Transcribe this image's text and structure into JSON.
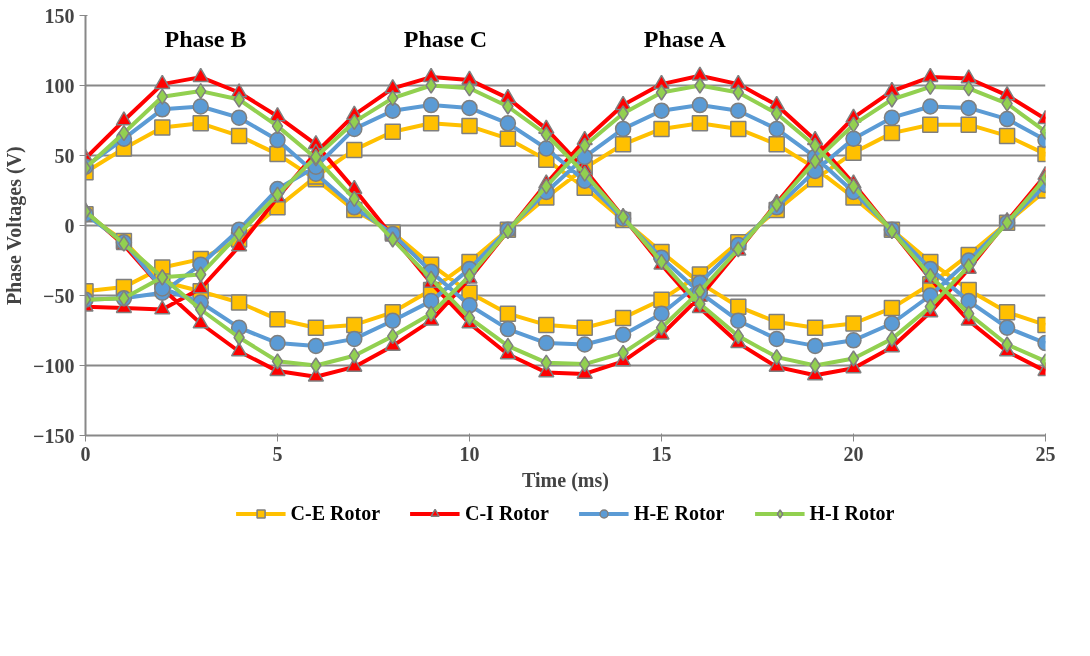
{
  "chart_data": {
    "type": "line",
    "xlabel": "Time (ms)",
    "ylabel": "Phase Voltages (V)",
    "xlim": [
      0,
      25
    ],
    "xticks": [
      0,
      5,
      10,
      15,
      20,
      25
    ],
    "ylim": [
      -150,
      150
    ],
    "yticks": [
      -150,
      -100,
      -50,
      0,
      50,
      100,
      150
    ],
    "grid": "y",
    "legend": "bottom",
    "line_style": "solid",
    "annotations": [
      "Phase B",
      "Phase C",
      "Phase A"
    ],
    "x": [
      0,
      1,
      2,
      3,
      4,
      5,
      6,
      7,
      8,
      9,
      10,
      11,
      12,
      13,
      14,
      15,
      16,
      17,
      18,
      19,
      20,
      21,
      22,
      23,
      24,
      25,
      null,
      0,
      1,
      2,
      3,
      4,
      5,
      6,
      7,
      8,
      9,
      10,
      11,
      12,
      13,
      14,
      15,
      16,
      17,
      18,
      19,
      20,
      21,
      22,
      23,
      24,
      25,
      null,
      0,
      1,
      2,
      3,
      4,
      5,
      6,
      7,
      8,
      9,
      10,
      11,
      12,
      13,
      14,
      15,
      16,
      17,
      18,
      19,
      20,
      21,
      22,
      23,
      24,
      25
    ],
    "series": [
      {
        "name": "C-E Rotor",
        "color": "#ffc000",
        "marker": "square",
        "values": [
          38,
          55,
          70,
          73,
          64,
          51,
          33,
          11,
          -5,
          -28,
          -48,
          -63,
          -71,
          -73,
          -66,
          -53,
          -35,
          -12,
          11,
          33,
          52,
          66,
          72,
          72,
          64,
          51,
          null,
          -47,
          -44,
          -30,
          -24,
          -10,
          13,
          35,
          54,
          67,
          73,
          71,
          62,
          47,
          27,
          4,
          -19,
          -41,
          -58,
          -69,
          -73,
          -70,
          -59,
          -42,
          -21,
          2,
          25,
          null,
          8,
          -11,
          -40,
          -47,
          -55,
          -67,
          -73,
          -71,
          -62,
          -46,
          -26,
          -3,
          20,
          41,
          58,
          69,
          73,
          69,
          58,
          41,
          20,
          -3,
          -26,
          -46,
          -62,
          -71
        ]
      },
      {
        "name": "C-I Rotor",
        "color": "#ff0000",
        "marker": "triangle",
        "values": [
          48,
          75,
          101,
          106,
          95,
          78,
          58,
          26,
          -8,
          -41,
          -70,
          -92,
          -105,
          -106,
          -97,
          -78,
          -51,
          -18,
          16,
          49,
          77,
          96,
          106,
          105,
          93,
          76,
          null,
          -58,
          -59,
          -60,
          -45,
          -15,
          20,
          52,
          79,
          98,
          106,
          104,
          91,
          69,
          40,
          6,
          -28,
          -59,
          -84,
          -101,
          -107,
          -102,
          -87,
          -62,
          -31,
          3,
          36,
          null,
          10,
          -14,
          -45,
          -70,
          -90,
          -104,
          -108,
          -101,
          -86,
          -68,
          -38,
          -4,
          30,
          61,
          86,
          101,
          107,
          101,
          86,
          61,
          30,
          -4,
          -38,
          -68,
          -90,
          -104
        ]
      },
      {
        "name": "H-E Rotor",
        "color": "#5b9bd5",
        "marker": "circle",
        "values": [
          42,
          62,
          83,
          85,
          77,
          61,
          37,
          13,
          -6,
          -33,
          -57,
          -74,
          -84,
          -85,
          -78,
          -63,
          -41,
          -14,
          13,
          39,
          62,
          77,
          85,
          84,
          76,
          61,
          null,
          -53,
          -52,
          -48,
          -28,
          -3,
          26,
          42,
          69,
          82,
          86,
          84,
          73,
          55,
          32,
          5,
          -23,
          -48,
          -68,
          -81,
          -86,
          -82,
          -70,
          -50,
          -25,
          2,
          29,
          null,
          8,
          -12,
          -45,
          -55,
          -73,
          -84,
          -86,
          -81,
          -68,
          -54,
          -31,
          -3,
          24,
          49,
          69,
          82,
          86,
          82,
          69,
          49,
          24,
          -3,
          -31,
          -54,
          -73,
          -84
        ]
      },
      {
        "name": "H-I Rotor",
        "color": "#92d050",
        "marker": "diamond",
        "values": [
          41,
          66,
          92,
          96,
          90,
          71,
          48,
          19,
          -10,
          -38,
          -66,
          -86,
          -98,
          -99,
          -91,
          -73,
          -47,
          -17,
          15,
          46,
          72,
          90,
          99,
          98,
          87,
          67,
          null,
          -53,
          -52,
          -37,
          -35,
          -6,
          22,
          49,
          74,
          91,
          100,
          98,
          85,
          65,
          37,
          6,
          -26,
          -56,
          -79,
          -94,
          -100,
          -95,
          -81,
          -58,
          -29,
          2,
          34,
          null,
          10,
          -13,
          -37,
          -60,
          -80,
          -97,
          -100,
          -93,
          -79,
          -63,
          -36,
          -4,
          28,
          57,
          80,
          95,
          100,
          95,
          80,
          57,
          28,
          -4,
          -36,
          -63,
          -85,
          -97
        ]
      }
    ]
  }
}
